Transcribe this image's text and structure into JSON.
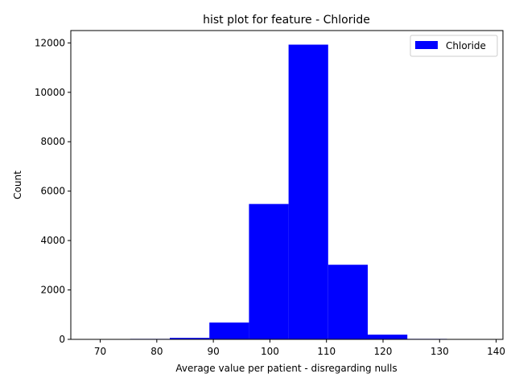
{
  "chart_data": {
    "type": "bar",
    "title": "hist plot for feature -  Chloride",
    "xlabel": "Average value per patient - disregarding nulls",
    "ylabel": "Count",
    "xlim": [
      64.8,
      141.2
    ],
    "ylim": [
      0,
      12500
    ],
    "x_ticks": [
      70,
      80,
      90,
      100,
      110,
      120,
      130,
      140
    ],
    "y_ticks": [
      0,
      2000,
      4000,
      6000,
      8000,
      10000,
      12000
    ],
    "bins": [
      {
        "start": 68.3,
        "end": 75.3,
        "count": 0
      },
      {
        "start": 75.3,
        "end": 82.3,
        "count": 20
      },
      {
        "start": 82.3,
        "end": 89.3,
        "count": 60
      },
      {
        "start": 89.3,
        "end": 96.3,
        "count": 680
      },
      {
        "start": 96.3,
        "end": 103.3,
        "count": 5480
      },
      {
        "start": 103.3,
        "end": 110.3,
        "count": 11930
      },
      {
        "start": 110.3,
        "end": 117.3,
        "count": 3020
      },
      {
        "start": 117.3,
        "end": 124.3,
        "count": 190
      },
      {
        "start": 124.3,
        "end": 131.3,
        "count": 20
      },
      {
        "start": 131.3,
        "end": 138.3,
        "count": 0
      }
    ],
    "legend": {
      "label": "Chloride",
      "position": "top-right"
    },
    "color": "#0000ff",
    "grid": false
  }
}
